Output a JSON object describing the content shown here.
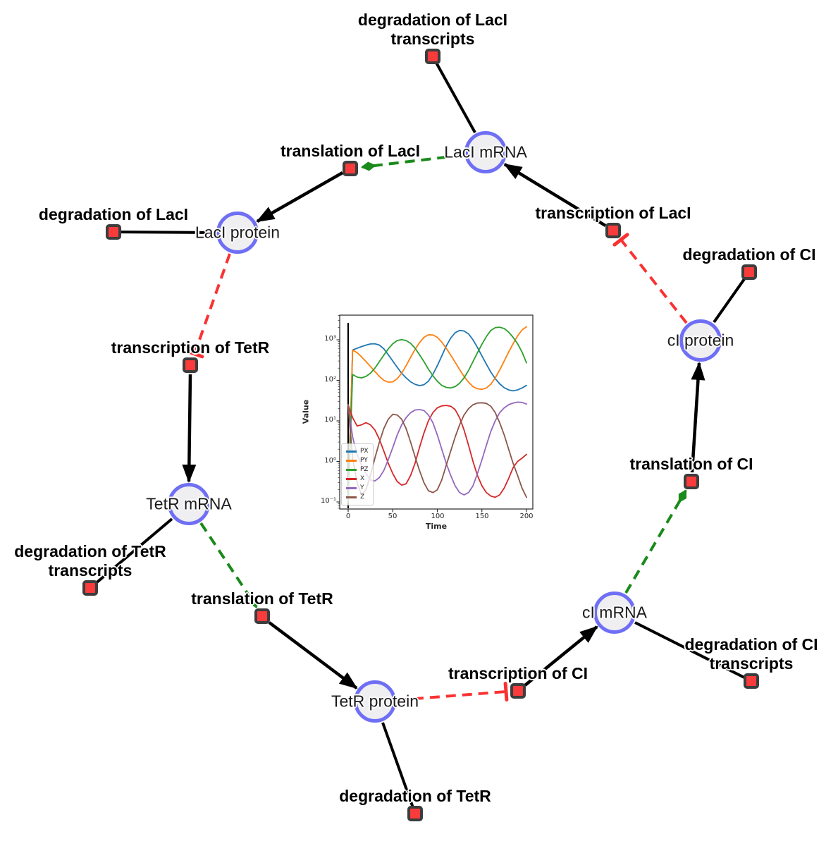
{
  "diagram": {
    "species": [
      {
        "id": "laci-mrna",
        "label": "LacI mRNA"
      },
      {
        "id": "laci-protein",
        "label": "LacI protein"
      },
      {
        "id": "tetr-mrna",
        "label": "TetR mRNA"
      },
      {
        "id": "tetr-protein",
        "label": "TetR protein"
      },
      {
        "id": "ci-mrna",
        "label": "cI mRNA"
      },
      {
        "id": "ci-protein",
        "label": "cI protein"
      }
    ],
    "reactions": [
      {
        "id": "degradation-laci-transcripts",
        "label": "degradation of LacI\ntranscripts"
      },
      {
        "id": "translation-laci",
        "label": "translation of LacI"
      },
      {
        "id": "degradation-laci",
        "label": "degradation of LacI"
      },
      {
        "id": "transcription-tetr",
        "label": "transcription of TetR"
      },
      {
        "id": "degradation-tetr-transcripts",
        "label": "degradation of TetR\ntranscripts"
      },
      {
        "id": "translation-tetr",
        "label": "translation of TetR"
      },
      {
        "id": "degradation-tetr",
        "label": "degradation of TetR"
      },
      {
        "id": "transcription-ci",
        "label": "transcription of CI"
      },
      {
        "id": "degradation-ci-transcripts",
        "label": "degradation of CI\ntranscripts"
      },
      {
        "id": "translation-ci",
        "label": "translation of CI"
      },
      {
        "id": "degradation-ci",
        "label": "degradation of CI"
      },
      {
        "id": "transcription-laci",
        "label": "transcription of LacI"
      }
    ],
    "colors": {
      "species_fill": "#efeff1",
      "species_border": "#6f6ff5",
      "reaction_fill": "#fa3b3b",
      "reaction_border": "#3d3d3d",
      "production_edge": "#000000",
      "degradation_edge": "#000000",
      "catalysis": "#1a8a1a",
      "inhibition": "#fa3232"
    }
  },
  "chart_data": {
    "type": "line",
    "title": "",
    "xlabel": "Time",
    "ylabel": "Value",
    "x_scale": "linear",
    "y_scale": "log",
    "xlim": [
      -10,
      207
    ],
    "ylim": [
      0.067,
      4000
    ],
    "grid": false,
    "legend_position": "lower left",
    "vline_x": 0,
    "x_ticks": [
      "0",
      "50",
      "100",
      "150",
      "200"
    ],
    "x_tick_values": [
      0,
      50,
      100,
      150,
      200
    ],
    "y_ticks": [
      "10⁻¹",
      "10⁰",
      "10¹",
      "10²",
      "10³"
    ],
    "y_tick_values": [
      0.1,
      1,
      10,
      100,
      1000
    ],
    "x": [
      0,
      5,
      10,
      15,
      20,
      25,
      30,
      35,
      40,
      45,
      50,
      55,
      60,
      65,
      70,
      75,
      80,
      85,
      90,
      95,
      100,
      105,
      110,
      115,
      120,
      125,
      130,
      135,
      140,
      145,
      150,
      155,
      160,
      165,
      170,
      175,
      180,
      185,
      190,
      195,
      200
    ],
    "series": [
      {
        "name": "PX",
        "color": "#1f77b4",
        "values": [
          0.1,
          560,
          620,
          680,
          740,
          790,
          800,
          740,
          600,
          430,
          300,
          210,
          150,
          115,
          92,
          80,
          74,
          78,
          95,
          140,
          230,
          400,
          700,
          1100,
          1500,
          1700,
          1650,
          1400,
          1000,
          650,
          400,
          250,
          160,
          110,
          82,
          66,
          58,
          55,
          58,
          65,
          75
        ]
      },
      {
        "name": "PY",
        "color": "#ff7f0e",
        "values": [
          0.1,
          560,
          480,
          380,
          290,
          220,
          165,
          125,
          100,
          90,
          92,
          110,
          150,
          230,
          370,
          580,
          850,
          1150,
          1330,
          1320,
          1150,
          880,
          620,
          420,
          280,
          185,
          125,
          90,
          70,
          62,
          60,
          65,
          80,
          115,
          180,
          300,
          500,
          800,
          1250,
          1750,
          2100
        ]
      },
      {
        "name": "PZ",
        "color": "#2ca02c",
        "values": [
          0.1,
          140,
          120,
          115,
          125,
          150,
          200,
          290,
          420,
          600,
          800,
          960,
          1010,
          960,
          820,
          620,
          430,
          290,
          190,
          130,
          95,
          75,
          67,
          65,
          70,
          85,
          115,
          175,
          290,
          480,
          780,
          1200,
          1700,
          2000,
          2050,
          1900,
          1550,
          1150,
          800,
          500,
          270
        ]
      },
      {
        "name": "X",
        "color": "#d62728",
        "values": [
          25,
          12,
          7.5,
          8,
          9,
          8,
          6,
          3.5,
          1.8,
          0.9,
          0.5,
          0.32,
          0.26,
          0.28,
          0.45,
          0.9,
          2.2,
          5,
          10,
          16,
          21,
          23.5,
          24,
          23,
          19,
          12,
          6,
          2.5,
          1.0,
          0.45,
          0.25,
          0.17,
          0.14,
          0.13,
          0.15,
          0.22,
          0.38,
          0.7,
          1.0,
          1.2,
          1.5
        ]
      },
      {
        "name": "Y",
        "color": "#9467bd",
        "values": [
          25,
          4,
          1.5,
          0.8,
          0.5,
          0.35,
          0.33,
          0.4,
          0.6,
          1.1,
          2.2,
          4.5,
          8,
          12,
          16,
          18.5,
          19,
          18,
          14,
          9,
          4.5,
          2,
          0.9,
          0.45,
          0.25,
          0.17,
          0.15,
          0.17,
          0.25,
          0.5,
          1.1,
          2.5,
          5.5,
          10,
          16,
          21,
          25,
          27.5,
          29,
          28.5,
          26
        ]
      },
      {
        "name": "Z",
        "color": "#8c564b",
        "values": [
          25,
          1.2,
          0.3,
          0.15,
          0.2,
          0.45,
          1.2,
          3,
          6.5,
          11,
          14.5,
          14,
          11,
          6.5,
          3,
          1.3,
          0.6,
          0.3,
          0.19,
          0.17,
          0.2,
          0.35,
          0.8,
          1.8,
          4,
          8,
          14,
          20,
          25,
          27.5,
          28,
          27,
          23,
          16,
          9,
          4.5,
          2,
          0.9,
          0.45,
          0.22,
          0.13
        ]
      }
    ]
  }
}
